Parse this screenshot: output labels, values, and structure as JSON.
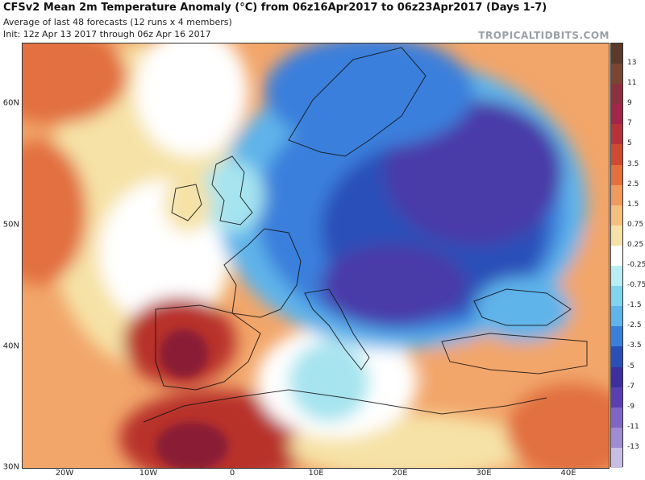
{
  "header": {
    "title": "CFSv2 Mean 2m Temperature Anomaly (°C) from 06z16Apr2017 to 06z23Apr2017 (Days 1-7)",
    "subtitle1": "Average of last 48 forecasts (12 runs x 4 members)",
    "subtitle2": "Init: 12z Apr 13 2017 through 06z Apr 16 2017",
    "brand": "TROPICALTIDBITS.COM"
  },
  "map": {
    "lat_labels": [
      "60N",
      "50N",
      "40N",
      "30N"
    ],
    "lon_labels": [
      "20W",
      "10W",
      "0",
      "10E",
      "20E",
      "30E",
      "40E"
    ],
    "colors": {
      "land_line": "#111111",
      "neutral": "#ffffff",
      "warm_light": "#f6e2a6",
      "warm_mid": "#f2a66a",
      "warm_strong": "#e2703f",
      "warm_deep": "#b8322a",
      "warm_extreme": "#8a1e36",
      "cool_light": "#a6e4ef",
      "cool_mid": "#5fb4ea",
      "cool_strong": "#3a7fdc",
      "cool_deep": "#2b4fb8",
      "cool_extreme": "#4a3aa8"
    }
  },
  "colorbar": {
    "labels": [
      "13",
      "11",
      "9",
      "7",
      "5",
      "3.5",
      "2.5",
      "1.5",
      "0.75",
      "0.25",
      "-0.25",
      "-0.75",
      "-1.5",
      "-2.5",
      "-3.5",
      "-5",
      "-7",
      "-9",
      "-11",
      "-13"
    ],
    "colors": [
      "#5a3a2a",
      "#7a4634",
      "#8d3040",
      "#a0264a",
      "#b8323a",
      "#d04a32",
      "#e4703e",
      "#f09a5e",
      "#f4c07e",
      "#f6e2a6",
      "#ffffff",
      "#b8eef4",
      "#82d4ee",
      "#5fb4ea",
      "#3a7fdc",
      "#2b4fb8",
      "#3d2f9e",
      "#5b3fb0",
      "#7f66c4",
      "#a08cd2",
      "#c8bee4"
    ]
  }
}
